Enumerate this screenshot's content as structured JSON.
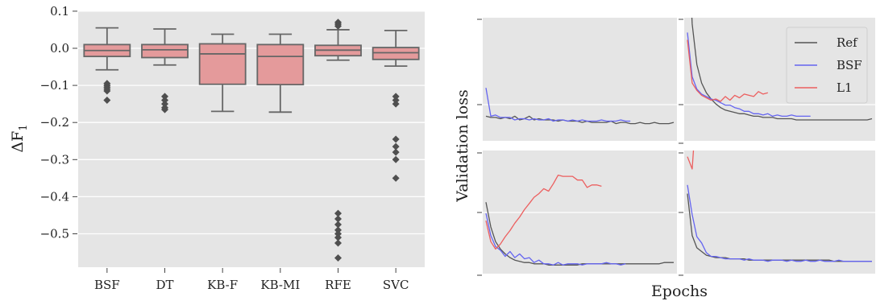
{
  "chart_data": [
    {
      "type": "box",
      "ylabel": "ΔF",
      "ylabel_subscript": "1",
      "ylim": [
        -0.59,
        0.1
      ],
      "yticks": [
        0.1,
        0.0,
        -0.1,
        -0.2,
        -0.3,
        -0.4,
        -0.5
      ],
      "ytick_labels": [
        "0.1",
        "0.0",
        "−0.1",
        "−0.2",
        "−0.3",
        "−0.4",
        "−0.5"
      ],
      "grid": true,
      "box_color": "#e49a9b",
      "edge_color": "#666666",
      "categories": [
        "BSF",
        "DT",
        "KB-F",
        "KB-MI",
        "RFE",
        "SVC"
      ],
      "boxes": [
        {
          "q1": -0.022,
          "median": -0.006,
          "q3": 0.01,
          "whisker_low": -0.058,
          "whisker_high": 0.055,
          "outliers": [
            -0.095,
            -0.1,
            -0.105,
            -0.11,
            -0.115,
            -0.14
          ]
        },
        {
          "q1": -0.025,
          "median": -0.004,
          "q3": 0.01,
          "whisker_low": -0.045,
          "whisker_high": 0.052,
          "outliers": [
            -0.13,
            -0.14,
            -0.15,
            -0.16,
            -0.165
          ]
        },
        {
          "q1": -0.097,
          "median": -0.015,
          "q3": 0.012,
          "whisker_low": -0.17,
          "whisker_high": 0.038,
          "outliers": []
        },
        {
          "q1": -0.098,
          "median": -0.022,
          "q3": 0.01,
          "whisker_low": -0.172,
          "whisker_high": 0.038,
          "outliers": []
        },
        {
          "q1": -0.02,
          "median": -0.005,
          "q3": 0.008,
          "whisker_low": -0.032,
          "whisker_high": 0.05,
          "outliers": [
            0.07,
            0.065,
            0.06,
            -0.445,
            -0.46,
            -0.475,
            -0.49,
            -0.5,
            -0.51,
            -0.525,
            -0.565
          ]
        },
        {
          "q1": -0.03,
          "median": -0.012,
          "q3": 0.002,
          "whisker_low": -0.048,
          "whisker_high": 0.048,
          "outliers": [
            -0.13,
            -0.14,
            -0.15,
            -0.245,
            -0.265,
            -0.28,
            -0.3,
            -0.35
          ]
        }
      ]
    },
    {
      "type": "line",
      "xlabel": "Epochs",
      "ylabel": "Validation loss",
      "legend": {
        "location": "top-right",
        "entries": [
          "Ref",
          "BSF",
          "L1"
        ]
      },
      "colors": {
        "Ref": "#555555",
        "BSF": "#6464f0",
        "L1": "#ec5f5f"
      },
      "panel_bg": "#e5e5e5",
      "ylim": [
        0,
        1
      ],
      "panels": [
        {
          "series": [
            {
              "name": "Ref",
              "values": [
                0.2,
                0.19,
                0.19,
                0.18,
                0.19,
                0.18,
                0.2,
                0.17,
                0.18,
                0.2,
                0.17,
                0.18,
                0.17,
                0.17,
                0.17,
                0.16,
                0.17,
                0.16,
                0.16,
                0.16,
                0.15,
                0.16,
                0.15,
                0.15,
                0.15,
                0.15,
                0.16,
                0.14,
                0.15,
                0.15,
                0.14,
                0.14,
                0.15,
                0.14,
                0.14,
                0.15,
                0.14,
                0.14,
                0.14,
                0.15
              ]
            },
            {
              "name": "BSF",
              "values": [
                0.43,
                0.2,
                0.21,
                0.19,
                0.19,
                0.19,
                0.17,
                0.18,
                0.18,
                0.17,
                0.18,
                0.17,
                0.17,
                0.18,
                0.16,
                0.17,
                0.17,
                0.16,
                0.17,
                0.16,
                0.17,
                0.16,
                0.16,
                0.16,
                0.17,
                0.16,
                0.16,
                0.16,
                0.17,
                0.16,
                0.16
              ]
            }
          ]
        },
        {
          "series": [
            {
              "name": "Ref",
              "values": [
                1.8,
                0.95,
                0.62,
                0.47,
                0.39,
                0.34,
                0.3,
                0.27,
                0.25,
                0.24,
                0.23,
                0.22,
                0.22,
                0.21,
                0.2,
                0.2,
                0.19,
                0.19,
                0.19,
                0.18,
                0.18,
                0.18,
                0.18,
                0.17,
                0.17,
                0.17,
                0.17,
                0.17,
                0.17,
                0.17,
                0.17,
                0.17,
                0.17,
                0.17,
                0.17,
                0.17,
                0.17,
                0.17,
                0.17,
                0.18
              ]
            },
            {
              "name": "BSF",
              "values": [
                0.88,
                0.52,
                0.42,
                0.38,
                0.36,
                0.34,
                0.33,
                0.31,
                0.29,
                0.29,
                0.27,
                0.26,
                0.24,
                0.24,
                0.22,
                0.22,
                0.21,
                0.22,
                0.2,
                0.21,
                0.2,
                0.2,
                0.21,
                0.2,
                0.2,
                0.2,
                0.2
              ]
            },
            {
              "name": "L1",
              "values": [
                0.82,
                0.47,
                0.41,
                0.37,
                0.35,
                0.33,
                0.34,
                0.32,
                0.36,
                0.33,
                0.37,
                0.35,
                0.38,
                0.37,
                0.36,
                0.4,
                0.38,
                0.39
              ]
            }
          ]
        },
        {
          "series": [
            {
              "name": "Ref",
              "values": [
                0.58,
                0.38,
                0.26,
                0.2,
                0.16,
                0.13,
                0.11,
                0.1,
                0.09,
                0.09,
                0.08,
                0.08,
                0.08,
                0.07,
                0.07,
                0.07,
                0.07,
                0.07,
                0.07,
                0.07,
                0.08,
                0.08,
                0.08,
                0.08,
                0.08,
                0.08,
                0.08,
                0.08,
                0.08,
                0.08,
                0.08,
                0.08,
                0.08,
                0.08,
                0.08,
                0.08,
                0.08,
                0.09,
                0.09,
                0.09
              ]
            },
            {
              "name": "BSF",
              "values": [
                0.49,
                0.31,
                0.22,
                0.19,
                0.14,
                0.18,
                0.13,
                0.16,
                0.12,
                0.13,
                0.09,
                0.11,
                0.08,
                0.08,
                0.07,
                0.09,
                0.07,
                0.08,
                0.08,
                0.08,
                0.07,
                0.08,
                0.08,
                0.08,
                0.08,
                0.09,
                0.08,
                0.08,
                0.07,
                0.08
              ]
            },
            {
              "name": "L1",
              "values": [
                0.43,
                0.26,
                0.2,
                0.24,
                0.3,
                0.35,
                0.41,
                0.46,
                0.52,
                0.57,
                0.62,
                0.65,
                0.69,
                0.67,
                0.73,
                0.8,
                0.79,
                0.79,
                0.79,
                0.76,
                0.76,
                0.7,
                0.72,
                0.72,
                0.71
              ]
            }
          ]
        },
        {
          "series": [
            {
              "name": "Ref",
              "values": [
                0.65,
                0.31,
                0.21,
                0.18,
                0.15,
                0.14,
                0.13,
                0.13,
                0.13,
                0.12,
                0.12,
                0.12,
                0.12,
                0.11,
                0.11,
                0.11,
                0.11,
                0.11,
                0.11,
                0.11,
                0.11,
                0.11,
                0.11,
                0.11,
                0.11,
                0.11,
                0.11,
                0.11,
                0.11,
                0.11,
                0.11,
                0.1,
                0.1,
                0.1,
                0.1,
                0.1,
                0.1,
                0.1,
                0.1,
                0.1
              ]
            },
            {
              "name": "BSF",
              "values": [
                0.72,
                0.48,
                0.3,
                0.25,
                0.17,
                0.14,
                0.14,
                0.13,
                0.12,
                0.12,
                0.12,
                0.12,
                0.11,
                0.12,
                0.11,
                0.11,
                0.11,
                0.1,
                0.11,
                0.11,
                0.11,
                0.1,
                0.11,
                0.1,
                0.1,
                0.11,
                0.1,
                0.1,
                0.11,
                0.1,
                0.1,
                0.1,
                0.11,
                0.1,
                0.1,
                0.1,
                0.1,
                0.1,
                0.1,
                0.1
              ]
            },
            {
              "name": "L1",
              "values": [
                0.95,
                0.85,
                1.4
              ]
            }
          ]
        }
      ]
    }
  ]
}
